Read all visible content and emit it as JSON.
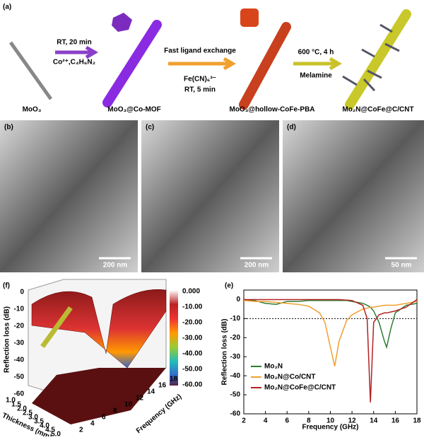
{
  "panel_a": {
    "label": "(a)",
    "step1": [
      "RT, 20 min",
      "Co²⁺,C₄H₆N₂"
    ],
    "step2": [
      "Fast ligand exchange",
      "Fe(CN)₆³⁻",
      "RT, 5 min"
    ],
    "step3": [
      "600 °C, 4 h",
      "Melamine"
    ],
    "materials": [
      "MoO₃",
      "MoO₃@Co-MOF",
      "MoO₃@hollow-CoFe-PBA",
      "Mo₂N@CoFe@C/CNT"
    ]
  },
  "tem": [
    {
      "label": "(b)",
      "scale": "200 nm"
    },
    {
      "label": "(c)",
      "scale": "200 nm"
    },
    {
      "label": "(d)",
      "scale": "50 nm"
    }
  ],
  "panel_f": {
    "label": "(f)",
    "zlabel": "Reflection loss (dB)",
    "xlabel": "Thickness (mm)",
    "ylabel": "Frequency (GHz)",
    "zticks": [
      "0",
      "-10",
      "-20",
      "-30",
      "-40",
      "-50",
      "-60"
    ],
    "thickness_ticks": [
      "1.0",
      "1.5",
      "2.0",
      "2.5",
      "3.0",
      "3.5",
      "4.0",
      "4.5",
      "5.0"
    ],
    "frequency_ticks": [
      "2",
      "4",
      "6",
      "8",
      "10",
      "12",
      "14",
      "16",
      "18"
    ],
    "colorbar_ticks": [
      "0.000",
      "-10.00",
      "-20.00",
      "-30.00",
      "-40.00",
      "-50.00",
      "-60.00"
    ]
  },
  "chart_data": {
    "type": "line",
    "panel_label": "(e)",
    "xlabel": "Frequency (GHz)",
    "ylabel": "Reflection loss (dB)",
    "x": [
      2,
      3,
      4,
      5,
      6,
      7,
      8,
      9,
      9.5,
      10,
      10.4,
      10.8,
      11.5,
      12,
      13,
      13.4,
      13.7,
      14,
      14.5,
      15,
      15.2,
      15.6,
      16,
      17,
      18
    ],
    "series": [
      {
        "name": "Mo₂N",
        "color": "#2e7d32",
        "values": [
          0,
          -0.5,
          -2,
          -2.5,
          -1,
          -1,
          -0.5,
          -0.5,
          -0.5,
          -0.5,
          -0.5,
          -0.5,
          -0.5,
          -1,
          -2,
          -3,
          -4,
          -6,
          -12,
          -22,
          -25,
          -15,
          -7,
          -3,
          -2
        ]
      },
      {
        "name": "Mo₂N@Co/CNT",
        "color": "#f0a030",
        "values": [
          -0.5,
          -1,
          -1,
          -1.5,
          -2,
          -2.5,
          -3.5,
          -7,
          -12,
          -25,
          -35,
          -22,
          -11,
          -8,
          -5,
          -4.5,
          -4,
          -4,
          -3.5,
          -3,
          -3,
          -3,
          -3,
          -2,
          -1
        ]
      },
      {
        "name": "Mo₂N@CoFe@C/CNT",
        "color": "#b22222",
        "values": [
          0,
          0,
          0,
          0,
          0,
          0,
          0,
          0,
          0,
          0,
          0,
          0,
          -0.3,
          -0.5,
          -3,
          -10,
          -54,
          -12,
          -8,
          -7,
          -7,
          -6.5,
          -6,
          -4,
          0
        ]
      }
    ],
    "xlim": [
      2,
      18
    ],
    "ylim": [
      -60,
      5
    ],
    "xticks": [
      2,
      4,
      6,
      8,
      10,
      12,
      14,
      16,
      18
    ],
    "yticks": [
      0,
      -10,
      -20,
      -30,
      -40,
      -50,
      -60
    ],
    "hline": -10
  }
}
